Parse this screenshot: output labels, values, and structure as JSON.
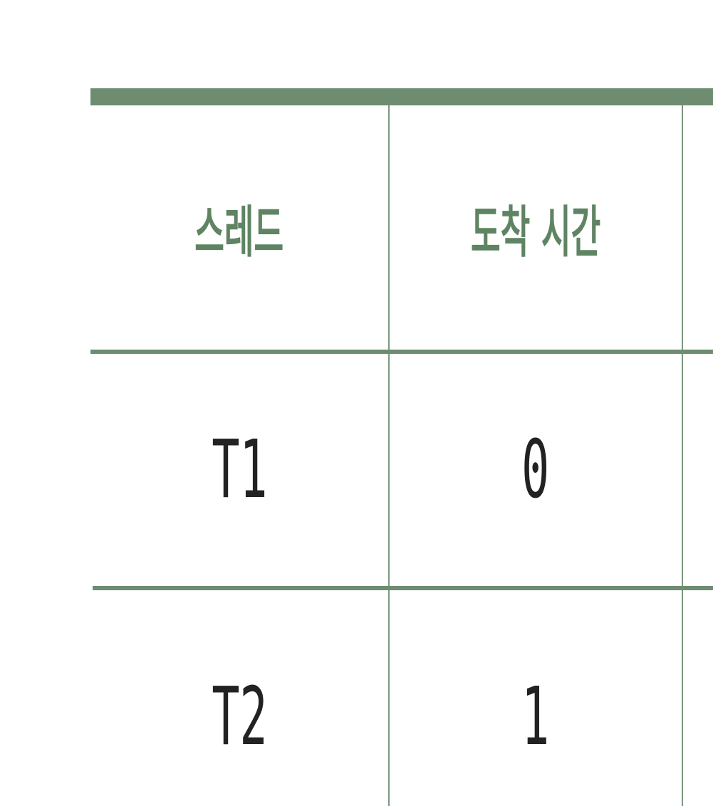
{
  "table": {
    "headers": [
      "스레드",
      "도착 시간"
    ],
    "rows": [
      [
        "T1",
        "0"
      ],
      [
        "T2",
        "1"
      ]
    ]
  },
  "colors": {
    "rule": "#6d8c70",
    "header_text": "#5f8463",
    "body_text": "#222222"
  }
}
